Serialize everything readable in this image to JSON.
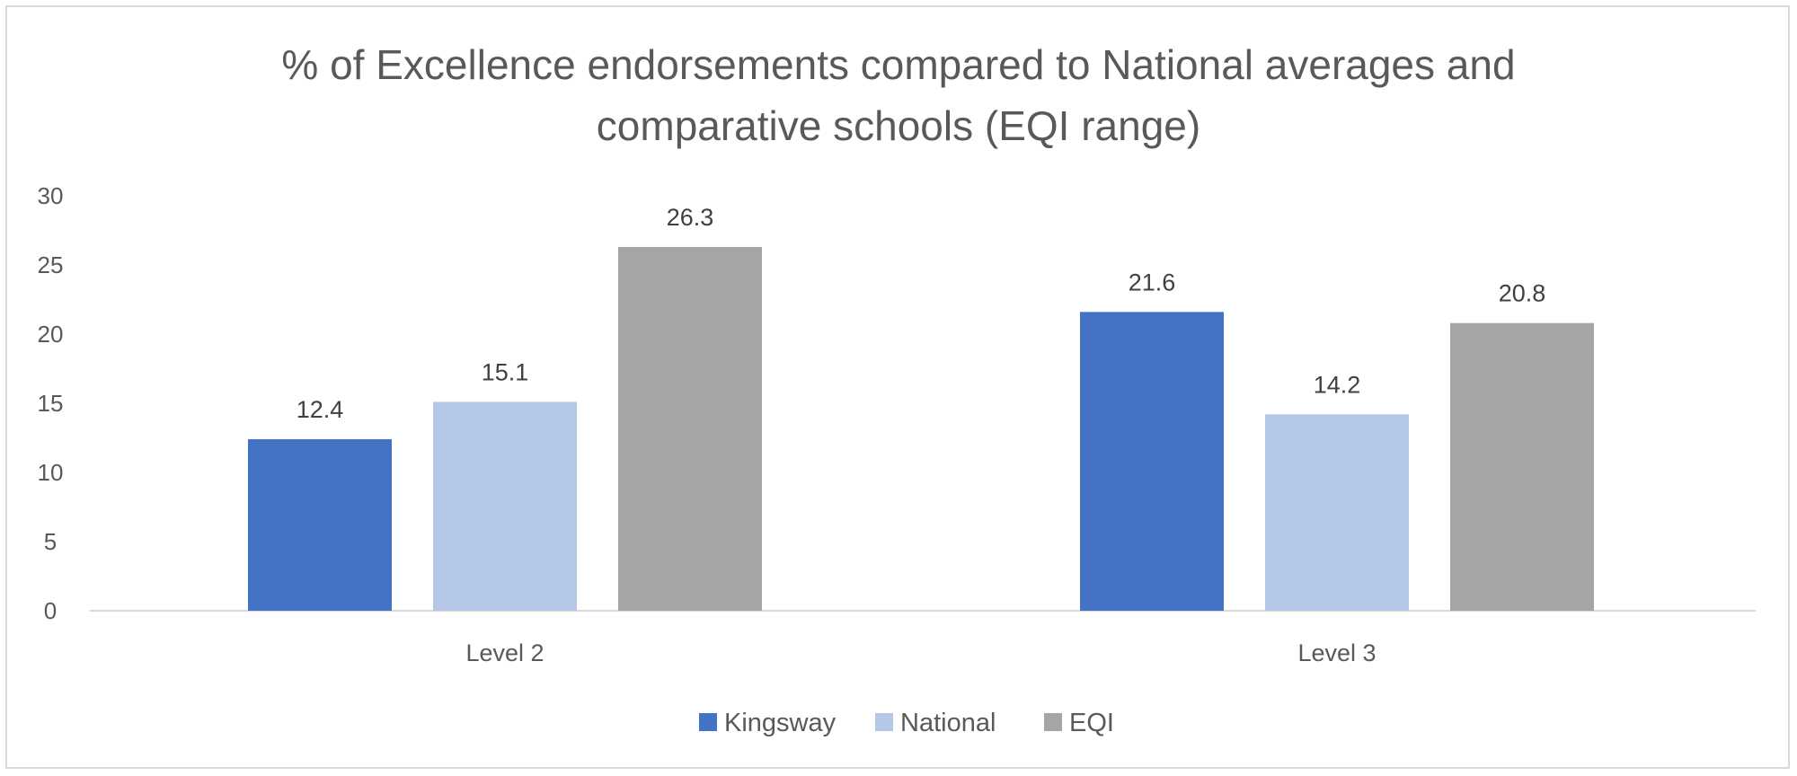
{
  "chart_data": {
    "type": "bar",
    "title_lines": [
      "% of Excellence endorsements compared to National averages and",
      "comparative schools (EQI range)"
    ],
    "categories": [
      "Level 2",
      "Level 3"
    ],
    "series": [
      {
        "name": "Kingsway",
        "color": "#4472c4",
        "values": [
          12.4,
          21.6
        ]
      },
      {
        "name": "National",
        "color": "#b4c7e7",
        "values": [
          15.1,
          14.2
        ]
      },
      {
        "name": "EQI",
        "color": "#a5a5a5",
        "values": [
          26.3,
          20.8
        ]
      }
    ],
    "ylim": [
      0,
      30
    ],
    "yticks": [
      0,
      5,
      10,
      15,
      20,
      25,
      30
    ],
    "grid": false,
    "data_labels": true,
    "legend": "bottom"
  }
}
